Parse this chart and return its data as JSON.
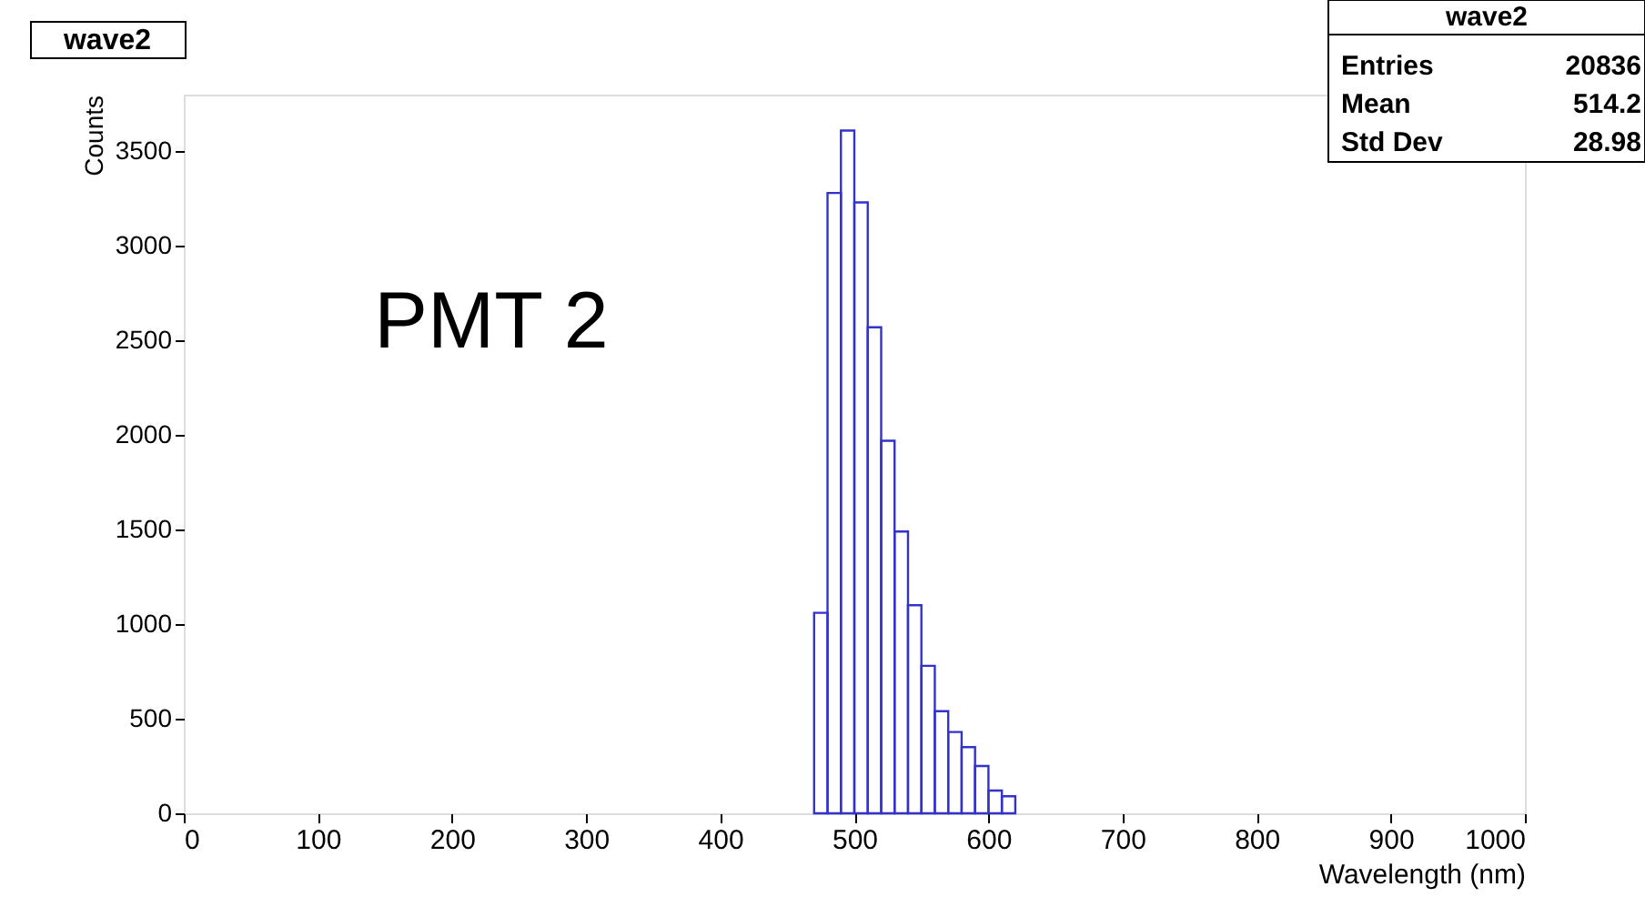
{
  "chart_data": {
    "type": "histogram",
    "title": "wave2",
    "xlabel": "Wavelength (nm)",
    "ylabel": "Counts",
    "bins": [
      470,
      480,
      490,
      500,
      510,
      520,
      530,
      540,
      550,
      560,
      570,
      580,
      590,
      600,
      610,
      620
    ],
    "values": [
      1060,
      3280,
      3610,
      3230,
      2570,
      1970,
      1490,
      1100,
      780,
      540,
      430,
      350,
      250,
      120,
      90
    ],
    "color": "#3333cc",
    "xlim": [
      0,
      1000
    ],
    "xticks": [
      0,
      100,
      200,
      300,
      400,
      500,
      600,
      700,
      800,
      900,
      1000
    ],
    "ylim": [
      0,
      3800
    ],
    "yticks": [
      0,
      500,
      1000,
      1500,
      2000,
      2500,
      3000,
      3500
    ],
    "grid": false,
    "annotations": [
      "PMT 2",
      "wave2",
      "Entries",
      "20836",
      "Mean",
      "514.2",
      "Std Dev",
      "28.98"
    ]
  }
}
